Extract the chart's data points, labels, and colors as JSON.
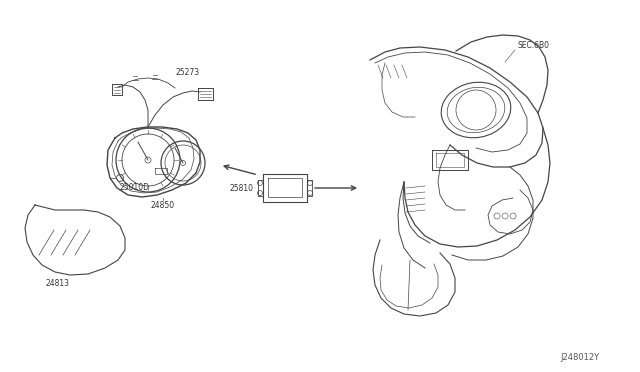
{
  "background_color": "#ffffff",
  "line_color": "#444444",
  "text_color": "#333333",
  "diagram_id": "J248012Y",
  "figsize": [
    6.4,
    3.72
  ],
  "dpi": 100,
  "lw": 0.7
}
